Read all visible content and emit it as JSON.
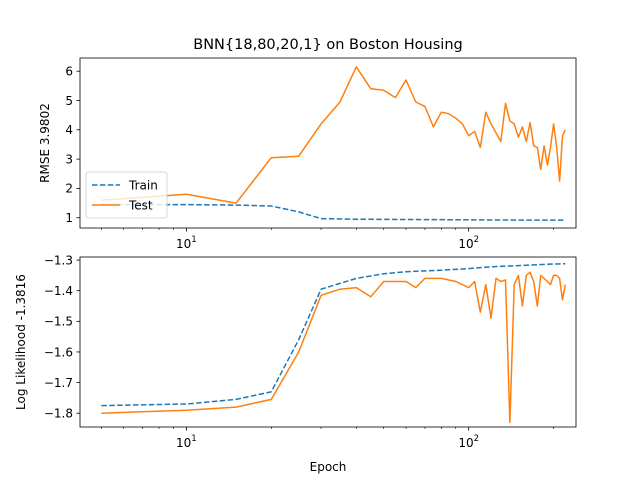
{
  "chart_data": [
    {
      "type": "line",
      "title": "BNN{18,80,20,1} on Boston Housing",
      "xlabel": "",
      "ylabel": "RMSE 3.9802",
      "xscale": "log",
      "xlim": [
        4.2,
        240
      ],
      "ylim": [
        0.65,
        6.45
      ],
      "xticks": [
        10,
        100
      ],
      "xtick_labels": [
        {
          "base": "10",
          "exp": "1"
        },
        {
          "base": "10",
          "exp": "2"
        }
      ],
      "yticks": [
        1,
        2,
        3,
        4,
        5,
        6
      ],
      "ytick_labels": [
        "1",
        "2",
        "3",
        "4",
        "5",
        "6"
      ],
      "grid": false,
      "legend": {
        "placement": "lower-left",
        "entries": [
          "Train",
          "Test"
        ]
      },
      "series": [
        {
          "name": "Train",
          "color": "#1f77b4",
          "style": "dashed",
          "x": [
            5,
            10,
            15,
            20,
            25,
            30,
            40,
            60,
            100,
            150,
            200,
            220
          ],
          "y": [
            1.45,
            1.45,
            1.43,
            1.4,
            1.2,
            0.97,
            0.95,
            0.94,
            0.93,
            0.92,
            0.92,
            0.92
          ]
        },
        {
          "name": "Test",
          "color": "#ff7f0e",
          "style": "solid",
          "x": [
            5,
            10,
            15,
            20,
            25,
            30,
            35,
            40,
            45,
            50,
            55,
            60,
            65,
            70,
            75,
            80,
            85,
            90,
            95,
            100,
            105,
            110,
            115,
            120,
            130,
            135,
            140,
            145,
            150,
            155,
            160,
            165,
            170,
            175,
            180,
            185,
            190,
            195,
            200,
            205,
            210,
            215,
            220
          ],
          "y": [
            1.6,
            1.8,
            1.5,
            3.05,
            3.1,
            4.2,
            4.95,
            6.15,
            5.4,
            5.35,
            5.1,
            5.7,
            4.95,
            4.8,
            4.1,
            4.6,
            4.55,
            4.4,
            4.2,
            3.8,
            3.95,
            3.4,
            4.6,
            4.2,
            3.6,
            4.9,
            4.3,
            4.2,
            3.75,
            4.1,
            3.6,
            4.25,
            3.45,
            3.4,
            2.65,
            3.45,
            2.8,
            3.4,
            4.2,
            3.4,
            2.25,
            3.8,
            4.0
          ]
        }
      ]
    },
    {
      "type": "line",
      "title": "",
      "xlabel": "Epoch",
      "ylabel": "Log Likelihood -1.3816",
      "xscale": "log",
      "xlim": [
        4.2,
        240
      ],
      "ylim": [
        -1.845,
        -1.29
      ],
      "xticks": [
        10,
        100
      ],
      "xtick_labels": [
        {
          "base": "10",
          "exp": "1"
        },
        {
          "base": "10",
          "exp": "2"
        }
      ],
      "yticks": [
        -1.8,
        -1.7,
        -1.6,
        -1.5,
        -1.4,
        -1.3
      ],
      "ytick_labels": [
        "−1.8",
        "−1.7",
        "−1.6",
        "−1.5",
        "−1.4",
        "−1.3"
      ],
      "grid": false,
      "series": [
        {
          "name": "Train",
          "color": "#1f77b4",
          "style": "dashed",
          "x": [
            5,
            10,
            15,
            20,
            25,
            30,
            40,
            50,
            60,
            80,
            100,
            120,
            150,
            200,
            220
          ],
          "y": [
            -1.775,
            -1.77,
            -1.755,
            -1.73,
            -1.56,
            -1.395,
            -1.36,
            -1.345,
            -1.338,
            -1.333,
            -1.328,
            -1.322,
            -1.318,
            -1.313,
            -1.312
          ]
        },
        {
          "name": "Test",
          "color": "#ff7f0e",
          "style": "solid",
          "x": [
            5,
            10,
            15,
            20,
            25,
            30,
            35,
            40,
            45,
            50,
            55,
            60,
            65,
            70,
            80,
            90,
            100,
            105,
            110,
            115,
            120,
            125,
            130,
            135,
            140,
            145,
            150,
            155,
            160,
            165,
            170,
            175,
            180,
            185,
            190,
            195,
            200,
            205,
            210,
            215,
            220
          ],
          "y": [
            -1.8,
            -1.79,
            -1.78,
            -1.755,
            -1.6,
            -1.415,
            -1.395,
            -1.39,
            -1.42,
            -1.37,
            -1.37,
            -1.37,
            -1.39,
            -1.36,
            -1.36,
            -1.37,
            -1.39,
            -1.37,
            -1.47,
            -1.38,
            -1.49,
            -1.36,
            -1.37,
            -1.365,
            -1.83,
            -1.38,
            -1.35,
            -1.45,
            -1.35,
            -1.34,
            -1.37,
            -1.45,
            -1.35,
            -1.36,
            -1.37,
            -1.38,
            -1.35,
            -1.35,
            -1.36,
            -1.43,
            -1.38
          ]
        }
      ]
    }
  ]
}
